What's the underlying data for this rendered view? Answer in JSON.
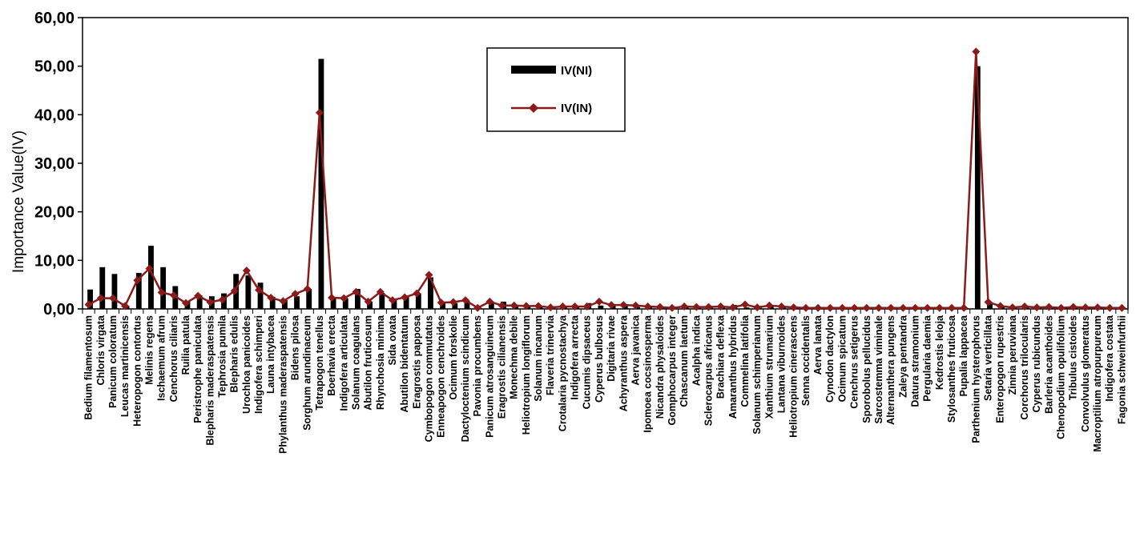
{
  "chart_data": {
    "type": "bar",
    "title": "",
    "xlabel": "",
    "ylabel": "Importance Value(IV)",
    "ylim": [
      0,
      60
    ],
    "yticks": [
      "0,00",
      "10,00",
      "20,00",
      "30,00",
      "40,00",
      "50,00",
      "60,00"
    ],
    "grid": false,
    "legend_position": "top-center",
    "colors": {
      "bar": "#000000",
      "line": "#8b1a1a",
      "marker": "#8b1a1a"
    },
    "categories": [
      "Bedium filamentosum",
      "Chloris virgata",
      "Panicum coloratum",
      "Leucas martinicensis",
      "Heteropogon contortus",
      "Melinis regens",
      "Ischaemum afrum",
      "Cenchorus ciliaris",
      "Ruilia patula",
      "Peristrophe paniculata",
      "Blepharis maderaspatensis",
      "Tephrosia pumila",
      "Blepharis edulis",
      "Urochloa panicoides",
      "Indigofera schimperi",
      "Launa intybacea",
      "Phylanthus maderaspatensis",
      "Bidens pilosa",
      "Sorghum arundinaceum",
      "Tetrapogon tenellus",
      "Boerhavia erecta",
      "Indigofera articulata",
      "Solanum coagulans",
      "Abutilon fruticosum",
      "Rhynchosia minima",
      "Sida ovata",
      "Abutilon bidentatum",
      "Eragrostis papposa",
      "Cymbopogon commutatus",
      "Enneapogon cenchroides",
      "Ocimum forskolie",
      "Dactyloctenium scindicum",
      "Pavonia procumbens",
      "Panicum atrosanguineum",
      "Eragrostis cilianensis",
      "Monechma debile",
      "Heliotropium longiflorum",
      "Solanum incanum",
      "Flaveria trinervia",
      "Crotalaria pycnostachya",
      "Indigofera arrecta",
      "Cucumis dipsaceus",
      "Cyperus bulbosus",
      "Digitaria rivae",
      "Achyranthus aspera",
      "Aerva javanica",
      "Ipomoea cocsinosperma",
      "Nicandra physaloides",
      "Gomphocarpus integer",
      "Chascanum laetum",
      "Acalpha indica",
      "Sclerocarpus africanus",
      "Brachiara deflexa",
      "Amaranthus hybridus",
      "Commelina latifolia",
      "Solanum schimperianum",
      "Xanthium strumarium",
      "Lantana viburnoides",
      "Heliotropium cinerascens",
      "Senna occidentalis",
      "Aerva lanata",
      "Cynodon dactylon",
      "Ocimum spicatum",
      "Cenchrus setigerus",
      "Sporobolus pellucidus",
      "Sarcostemma viminale",
      "Alternanthera pungens",
      "Zaleya pentandra",
      "Datura stramonium",
      "Pergularia daemia",
      "Kedrostis leloja",
      "Stylosanthes fruticosa",
      "Pupalia lappacea",
      "Parthenium hysterophorus",
      "Setaria verticillata",
      "Enteropogon rupestris",
      "Zinnia peruviana",
      "Corchorus trilocularis",
      "Cyperus rubicundus",
      "Barleria acanthoides",
      "Chenopodium opulifolium",
      "Tribulus cistoides",
      "Convolvulus glomeratus",
      "Macroptilium atropurpureum",
      "Indigofera costata",
      "Fagonia schweinfurthii"
    ],
    "series": [
      {
        "name": "IV(NI)",
        "type": "bar",
        "values": [
          4.0,
          8.6,
          7.2,
          0.6,
          7.4,
          13.0,
          8.6,
          4.7,
          1.5,
          2.8,
          2.6,
          3.2,
          7.2,
          6.9,
          5.4,
          2.5,
          1.8,
          2.6,
          4.1,
          51.5,
          2.3,
          2.2,
          4.1,
          1.5,
          3.3,
          1.9,
          2.6,
          3.2,
          6.5,
          1.2,
          1.2,
          1.7,
          0.2,
          1.5,
          1.5,
          0.8,
          0.6,
          0.6,
          0.4,
          0.5,
          0.5,
          1.2,
          0.7,
          0.7,
          0.7,
          0.4,
          0.4,
          0.2,
          0.4,
          0.4,
          0.4,
          0.4,
          0.3,
          0.8,
          0.3,
          0.6,
          0.5,
          0.3,
          0.2,
          0.2,
          0.2,
          0.2,
          0.2,
          0.2,
          0.2,
          0.2,
          0.2,
          0.2,
          0.2,
          0.2,
          0.2,
          0.2,
          0.2,
          50.0,
          1.4,
          0.6,
          0.4,
          0.4,
          0.3,
          0.3,
          0.3,
          0.3,
          0.3,
          0.3,
          0.2,
          0.2
        ]
      },
      {
        "name": "IV(IN)",
        "type": "line",
        "values": [
          0.9,
          2.2,
          2.2,
          0.6,
          5.9,
          8.3,
          3.4,
          2.8,
          1.2,
          2.7,
          1.4,
          1.9,
          3.7,
          7.9,
          3.9,
          2.3,
          1.6,
          3.1,
          4.1,
          40.4,
          2.3,
          2.2,
          3.5,
          1.5,
          3.5,
          1.8,
          2.4,
          3.2,
          7.0,
          1.3,
          1.4,
          1.8,
          0.2,
          1.5,
          0.7,
          0.7,
          0.6,
          0.6,
          0.3,
          0.5,
          0.5,
          0.5,
          1.5,
          0.8,
          0.8,
          0.7,
          0.5,
          0.4,
          0.2,
          0.5,
          0.4,
          0.4,
          0.5,
          0.3,
          0.9,
          0.3,
          0.7,
          0.5,
          0.3,
          0.2,
          0.2,
          0.2,
          0.2,
          0.2,
          0.2,
          0.2,
          0.2,
          0.2,
          0.2,
          0.2,
          0.2,
          0.2,
          0.2,
          53.0,
          1.4,
          0.6,
          0.3,
          0.5,
          0.3,
          0.4,
          0.2,
          0.4,
          0.3,
          0.3,
          0.2,
          0.2
        ]
      }
    ]
  }
}
